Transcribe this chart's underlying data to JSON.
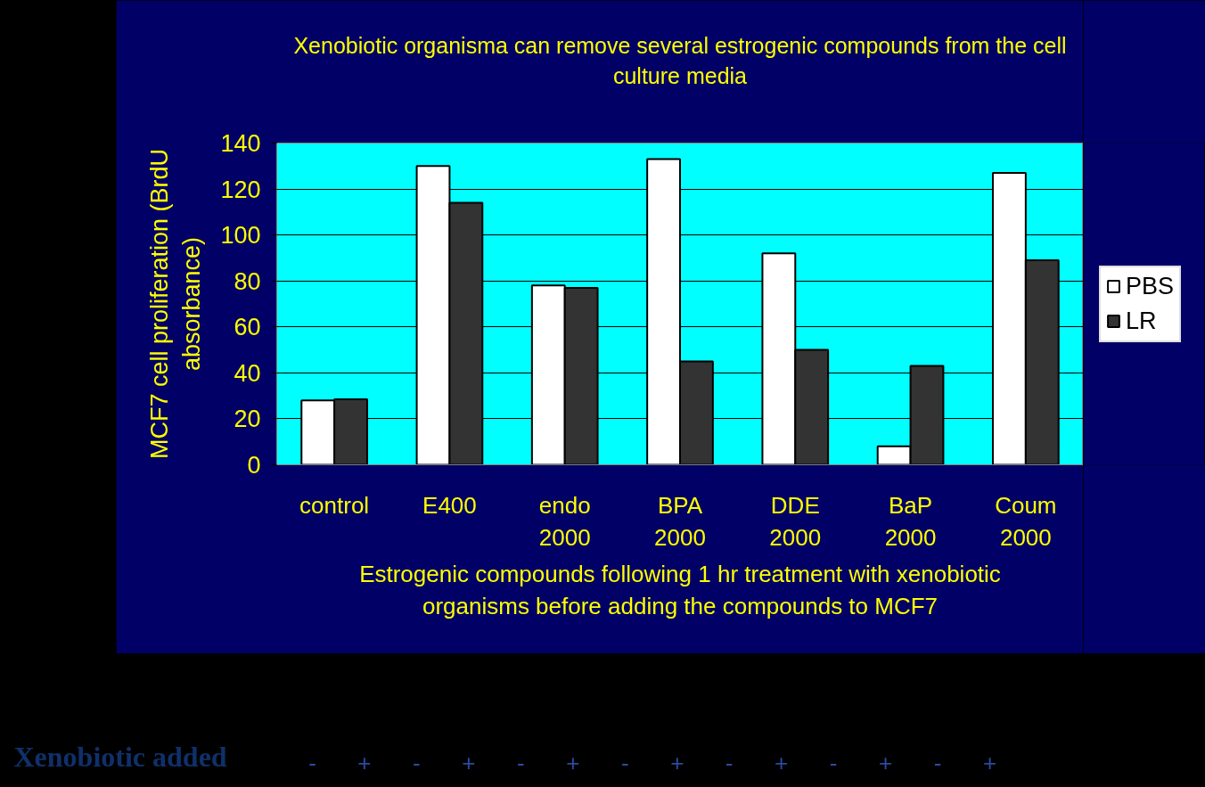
{
  "chart_data": {
    "type": "bar",
    "title": "Xenobiotic organisma can remove several estrogenic compounds from the cell culture media",
    "xlabel": "Estrogenic compounds following 1 hr treatment with xenobiotic organisms before adding the compounds to MCF7",
    "ylabel": "MCF7 cell proliferation (BrdU absorbance)",
    "categories": [
      "control",
      "E400",
      "endo 2000",
      "BPA 2000",
      "DDE 2000",
      "BaP 2000",
      "Coum 2000"
    ],
    "series": [
      {
        "name": "PBS",
        "color": "#ffffff",
        "values": [
          28,
          130,
          78,
          133,
          92,
          8,
          127
        ]
      },
      {
        "name": "LR",
        "color": "#333333",
        "values": [
          28.5,
          114,
          77,
          45,
          50,
          43,
          89
        ]
      }
    ],
    "ylim": [
      0,
      140
    ],
    "yticks": [
      0,
      20,
      40,
      60,
      80,
      100,
      120,
      140
    ],
    "grid": "y",
    "legend": "right",
    "annotations": [
      "Xenobiotic added",
      "-",
      "+",
      "-",
      "+",
      "-",
      "+",
      "-",
      "+",
      "-",
      "+",
      "-",
      "+",
      "-",
      "+"
    ]
  }
}
